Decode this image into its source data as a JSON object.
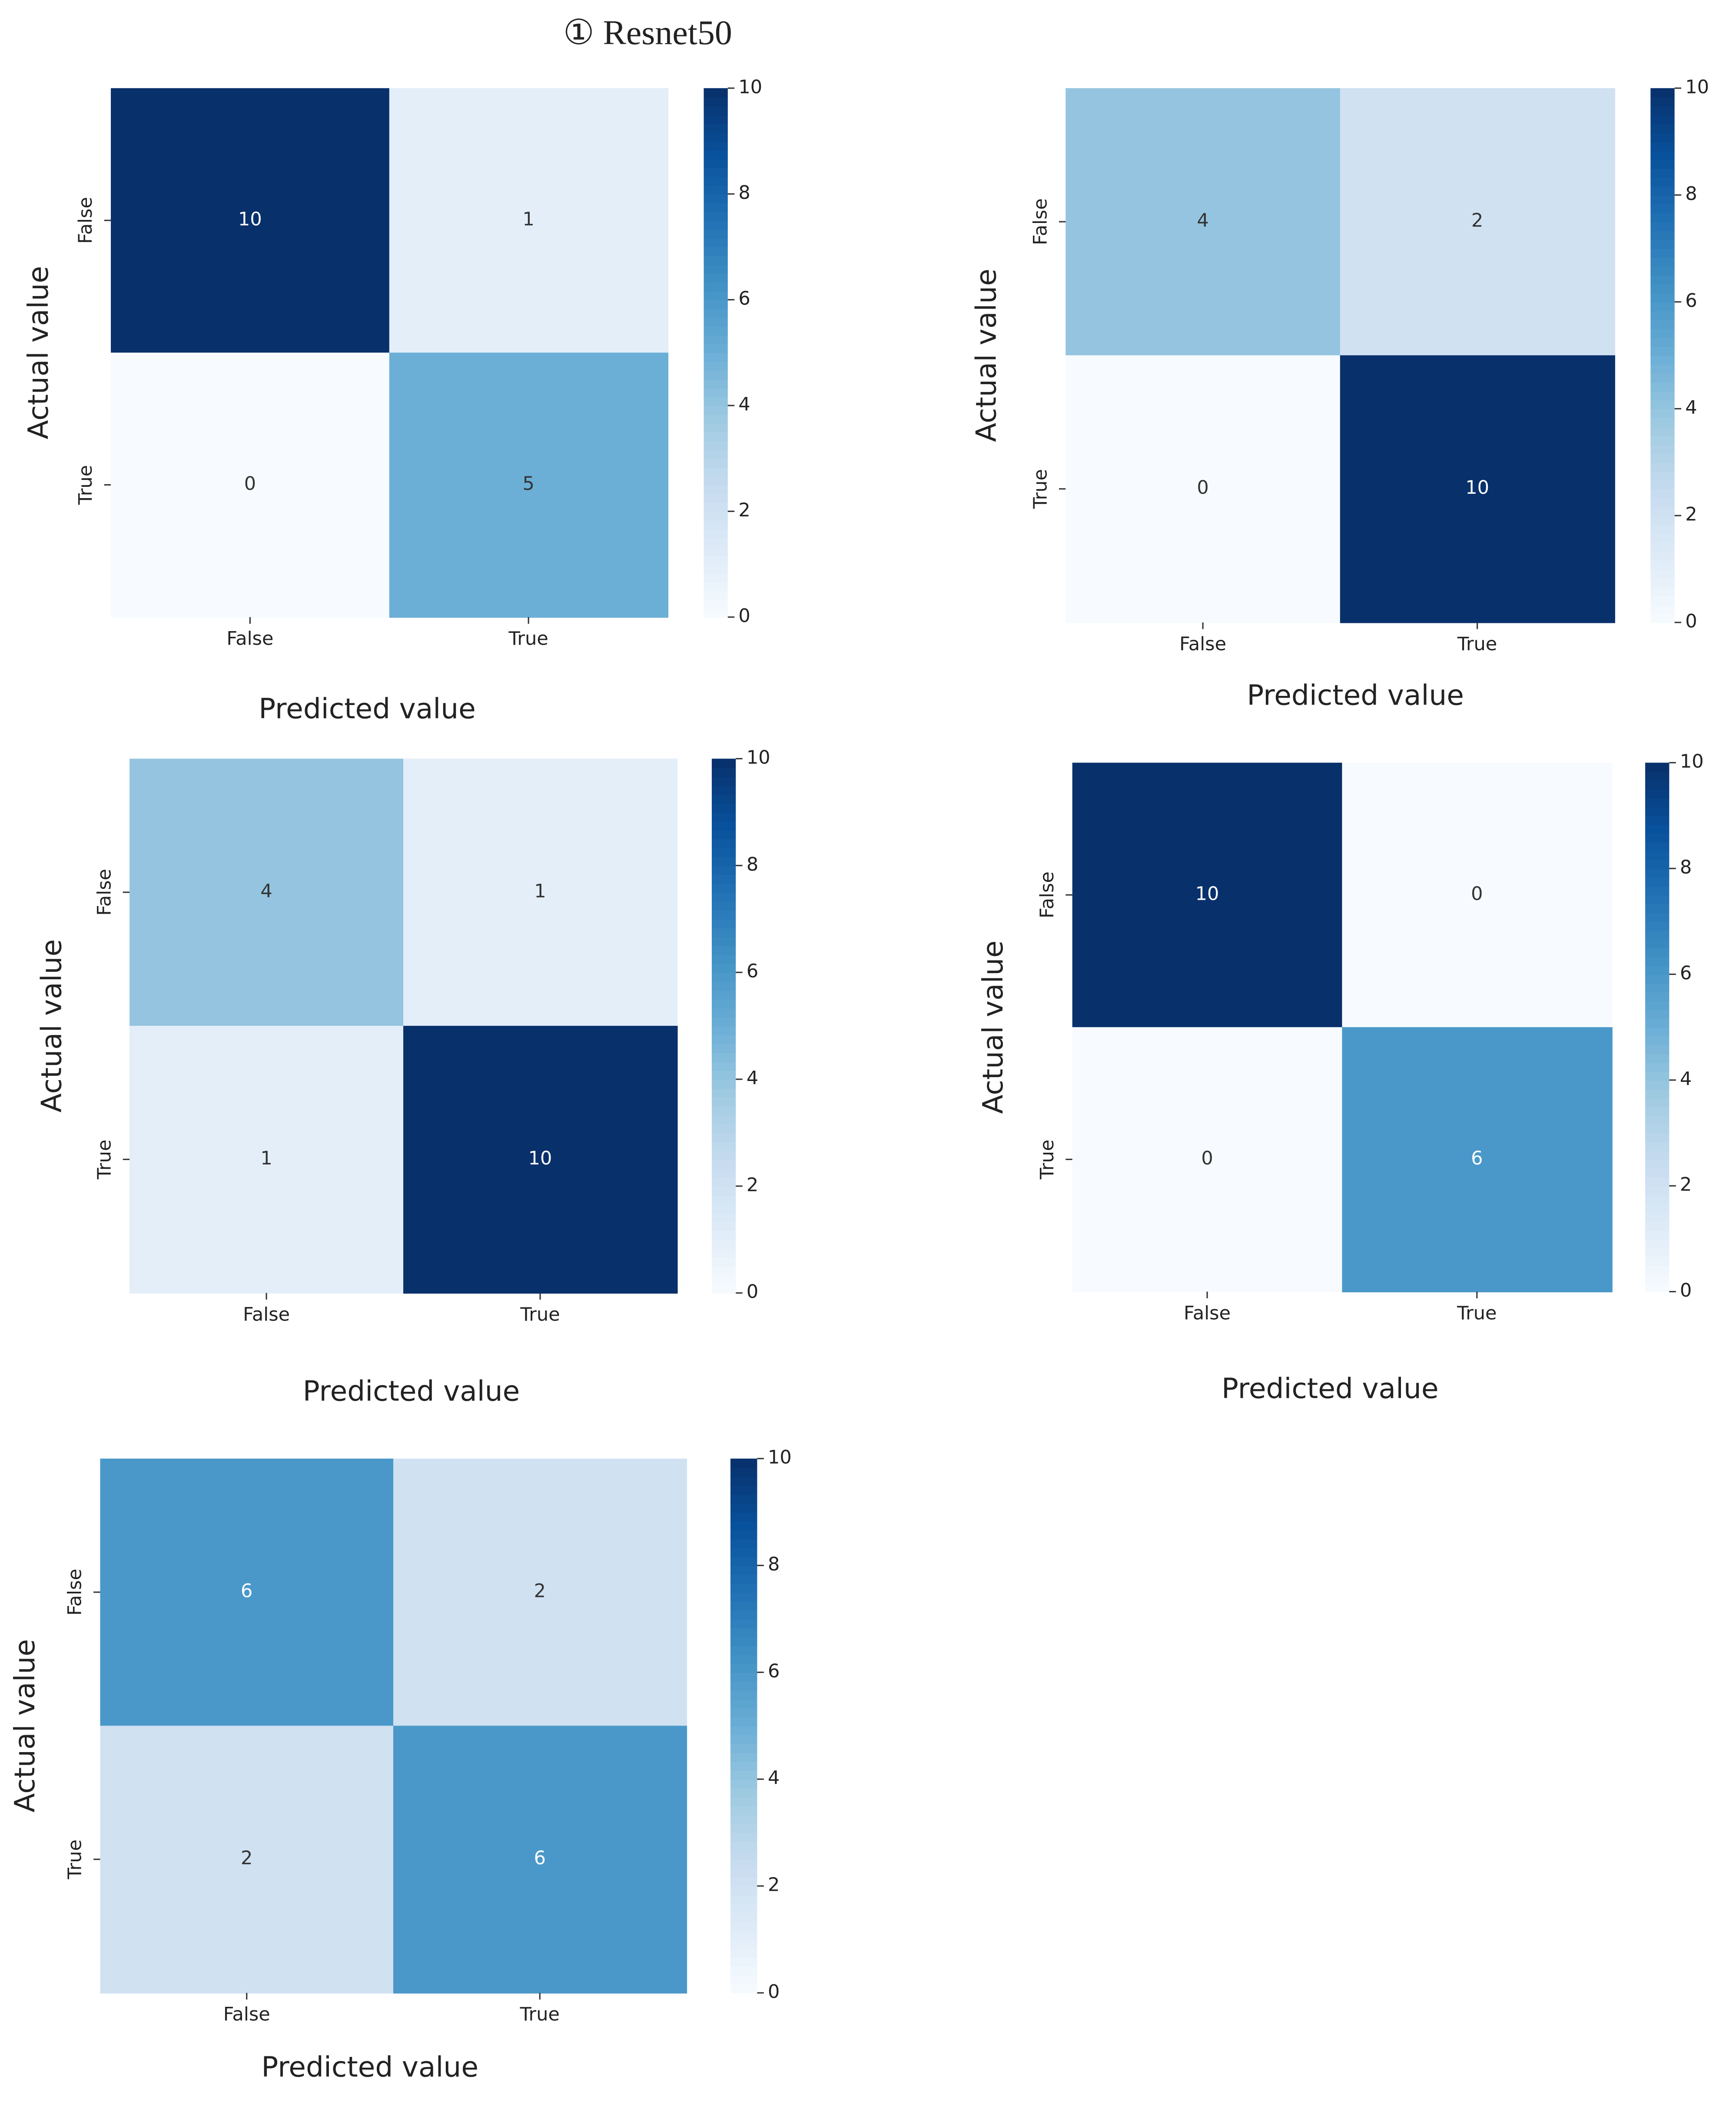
{
  "title": "① Resnet50",
  "chart_data": [
    {
      "type": "heatmap",
      "x_label": "Predicted value",
      "y_label": "Actual value",
      "x_categories": [
        "False",
        "True"
      ],
      "y_categories": [
        "False",
        "True"
      ],
      "values": [
        [
          10,
          1
        ],
        [
          0,
          5
        ]
      ],
      "clim": [
        0,
        10
      ],
      "cticks": [
        0,
        2,
        4,
        6,
        8,
        10
      ],
      "colormap": "Blues"
    },
    {
      "type": "heatmap",
      "x_label": "Predicted value",
      "y_label": "Actual value",
      "x_categories": [
        "False",
        "True"
      ],
      "y_categories": [
        "False",
        "True"
      ],
      "values": [
        [
          4,
          2
        ],
        [
          0,
          10
        ]
      ],
      "clim": [
        0,
        10
      ],
      "cticks": [
        0,
        2,
        4,
        6,
        8,
        10
      ],
      "colormap": "Blues"
    },
    {
      "type": "heatmap",
      "x_label": "Predicted value",
      "y_label": "Actual value",
      "x_categories": [
        "False",
        "True"
      ],
      "y_categories": [
        "False",
        "True"
      ],
      "values": [
        [
          4,
          1
        ],
        [
          1,
          10
        ]
      ],
      "clim": [
        0,
        10
      ],
      "cticks": [
        0,
        2,
        4,
        6,
        8,
        10
      ],
      "colormap": "Blues"
    },
    {
      "type": "heatmap",
      "x_label": "Predicted value",
      "y_label": "Actual value",
      "x_categories": [
        "False",
        "True"
      ],
      "y_categories": [
        "False",
        "True"
      ],
      "values": [
        [
          10,
          0
        ],
        [
          0,
          6
        ]
      ],
      "clim": [
        0,
        10
      ],
      "cticks": [
        0,
        2,
        4,
        6,
        8,
        10
      ],
      "colormap": "Blues"
    },
    {
      "type": "heatmap",
      "x_label": "Predicted value",
      "y_label": "Actual value",
      "x_categories": [
        "False",
        "True"
      ],
      "y_categories": [
        "False",
        "True"
      ],
      "values": [
        [
          6,
          2
        ],
        [
          2,
          6
        ]
      ],
      "clim": [
        0,
        10
      ],
      "cticks": [
        0,
        2,
        4,
        6,
        8,
        10
      ],
      "colormap": "Blues"
    }
  ]
}
